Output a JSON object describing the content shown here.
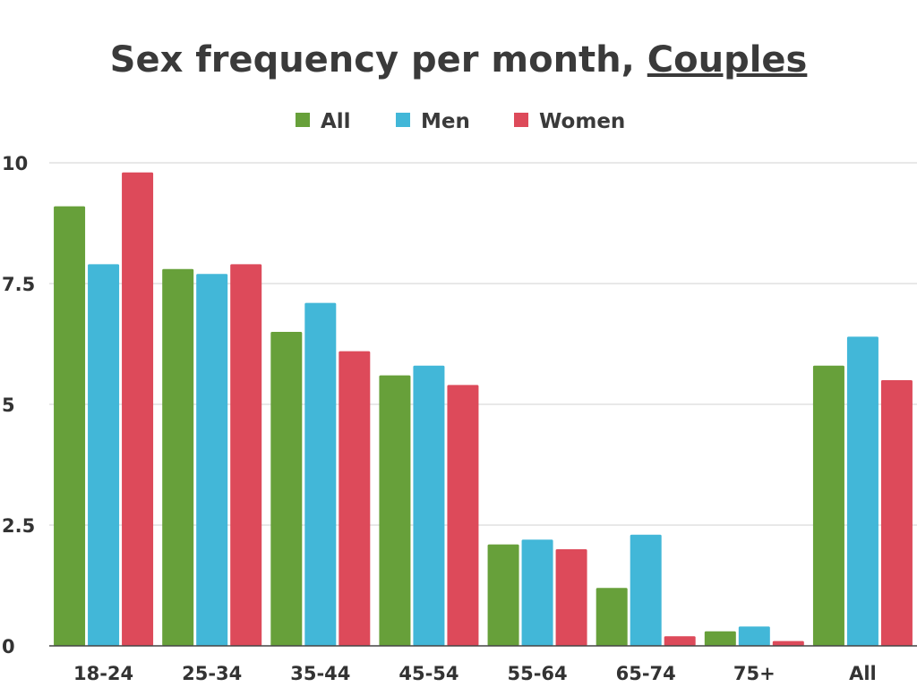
{
  "chart_data": {
    "type": "bar",
    "title_main": "Sex frequency per month, ",
    "title_emph": "Couples",
    "categories": [
      "18-24",
      "25-34",
      "35-44",
      "45-54",
      "55-64",
      "65-74",
      "75+",
      "All"
    ],
    "series": [
      {
        "name": "All",
        "color": "#67a03a",
        "values": [
          9.1,
          7.8,
          6.5,
          5.6,
          2.1,
          1.2,
          0.3,
          5.8
        ]
      },
      {
        "name": "Men",
        "color": "#42b7d8",
        "values": [
          7.9,
          7.7,
          7.1,
          5.8,
          2.2,
          2.3,
          0.4,
          6.4
        ]
      },
      {
        "name": "Women",
        "color": "#dd4a5a",
        "values": [
          9.8,
          7.9,
          6.1,
          5.4,
          2.0,
          0.2,
          0.1,
          5.5
        ]
      }
    ],
    "y_ticks": [
      "0",
      "2.5",
      "5",
      "7.5",
      "10"
    ],
    "ylim": [
      0,
      10
    ],
    "xlabel": "",
    "ylabel": "",
    "grid": true,
    "legend_position": "top-center"
  }
}
